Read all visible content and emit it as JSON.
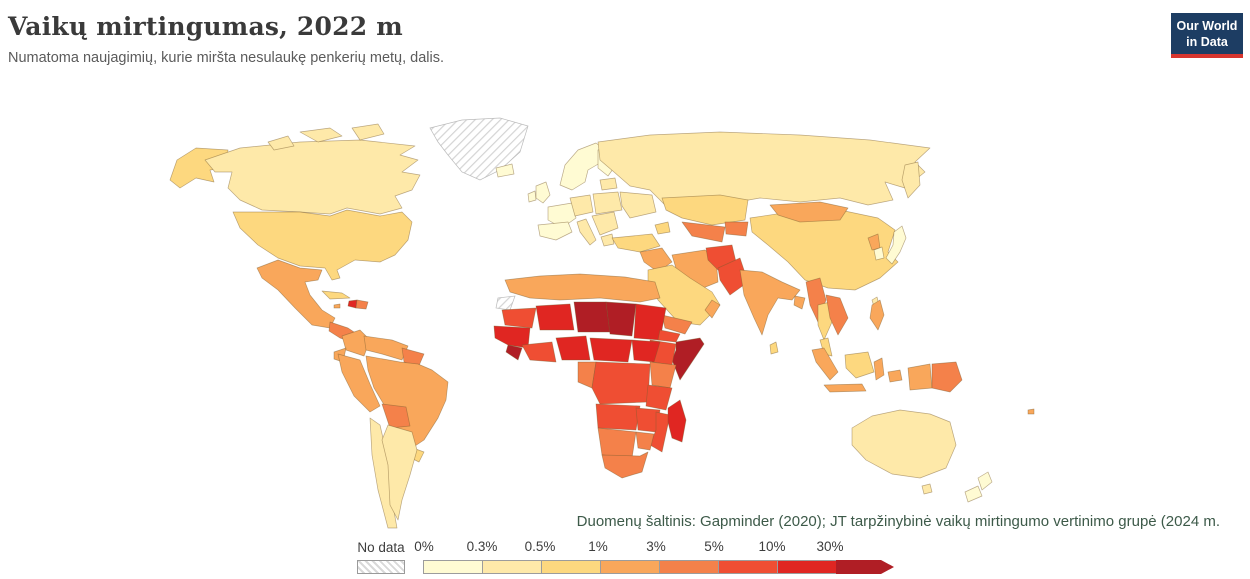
{
  "header": {
    "title": "Vaikų mirtingumas, 2022 m",
    "subtitle": "Numatoma naujagimių, kurie miršta nesulaukę penkerių metų, dalis."
  },
  "logo": {
    "line1": "Our World",
    "line2": "in Data",
    "bg_color": "#1d3d63",
    "accent_color": "#d7352e"
  },
  "source": {
    "text": "Duomenų šaltinis: Gapminder (2020); JT tarpžinybinė vaikų mirtingumo vertinimo grupė (2024 m."
  },
  "legend": {
    "no_data_label": "No data",
    "tick_labels": [
      "0%",
      "0.3%",
      "0.5%",
      "1%",
      "3%",
      "5%",
      "10%",
      "30%"
    ],
    "colors": [
      "#FFFBD3",
      "#FEE9A9",
      "#FDD87F",
      "#F9A75B",
      "#F4814A",
      "#EF4E33",
      "#E02622",
      "#B01E25"
    ]
  },
  "chart_data": {
    "type": "choropleth",
    "title": "Vaikų mirtingumas, 2022 m",
    "subtitle": "Numatoma naujagimių, kurie miršta nesulaukę penkerių metų, dalis.",
    "unit": "%",
    "year": "2022",
    "bins": [
      "0-0.3%",
      "0.3-0.5%",
      "0.5-1%",
      "1-3%",
      "3-5%",
      "5-10%",
      "10-30%",
      ">30%"
    ],
    "bin_colors": [
      "#FFFBD3",
      "#FEE9A9",
      "#FDD87F",
      "#F9A75B",
      "#F4814A",
      "#EF4E33",
      "#E02622",
      "#B01E25"
    ],
    "legend_position": "bottom",
    "no_data": [
      "Greenland",
      "Western Sahara",
      "French Guiana"
    ],
    "regions": [
      {
        "name": "Canada",
        "value": "0.3-0.5%"
      },
      {
        "name": "United States",
        "value": "0.5-1%"
      },
      {
        "name": "Mexico",
        "value": "1-3%"
      },
      {
        "name": "Central America",
        "value": "3-5%"
      },
      {
        "name": "Cuba",
        "value": "0.5-1%"
      },
      {
        "name": "Haiti",
        "value": "10-30%"
      },
      {
        "name": "Dominican Republic",
        "value": "3-5%"
      },
      {
        "name": "Colombia",
        "value": "1-3%"
      },
      {
        "name": "Venezuela",
        "value": "1-3%"
      },
      {
        "name": "Guyana and Suriname",
        "value": "3-5%"
      },
      {
        "name": "Ecuador",
        "value": "1-3%"
      },
      {
        "name": "Peru",
        "value": "1-3%"
      },
      {
        "name": "Brazil",
        "value": "1-3%"
      },
      {
        "name": "Bolivia",
        "value": "3-5%"
      },
      {
        "name": "Paraguay",
        "value": "1-3%"
      },
      {
        "name": "Uruguay",
        "value": "0.5-1%"
      },
      {
        "name": "Chile",
        "value": "0.3-0.5%"
      },
      {
        "name": "Argentina",
        "value": "0.3-0.5%"
      },
      {
        "name": "Iceland",
        "value": "0-0.3%"
      },
      {
        "name": "Norway and Sweden",
        "value": "0-0.3%"
      },
      {
        "name": "Finland",
        "value": "0-0.3%"
      },
      {
        "name": "United Kingdom",
        "value": "0-0.3%"
      },
      {
        "name": "Ireland",
        "value": "0-0.3%"
      },
      {
        "name": "France",
        "value": "0-0.3%"
      },
      {
        "name": "Spain and Portugal",
        "value": "0-0.3%"
      },
      {
        "name": "Germany and Central Europe",
        "value": "0.3-0.5%"
      },
      {
        "name": "Italy",
        "value": "0.3-0.5%"
      },
      {
        "name": "Poland",
        "value": "0.3-0.5%"
      },
      {
        "name": "Balkans",
        "value": "0.3-0.5%"
      },
      {
        "name": "Ukraine",
        "value": "0.3-0.5%"
      },
      {
        "name": "Russia",
        "value": "0.3-0.5%"
      },
      {
        "name": "Turkey",
        "value": "0.5-1%"
      },
      {
        "name": "Kazakhstan",
        "value": "0.5-1%"
      },
      {
        "name": "Turkmenistan and Uzbekistan",
        "value": "3-5%"
      },
      {
        "name": "Kyrgyzstan and Tajikistan",
        "value": "3-5%"
      },
      {
        "name": "Mongolia",
        "value": "1-3%"
      },
      {
        "name": "China",
        "value": "0.5-1%"
      },
      {
        "name": "Japan",
        "value": "0-0.3%"
      },
      {
        "name": "South Korea",
        "value": "0-0.3%"
      },
      {
        "name": "North Korea",
        "value": "1-3%"
      },
      {
        "name": "Iran",
        "value": "1-3%"
      },
      {
        "name": "Iraq and Syria",
        "value": "1-3%"
      },
      {
        "name": "Saudi Arabia",
        "value": "0.5-1%"
      },
      {
        "name": "Yemen",
        "value": "3-5%"
      },
      {
        "name": "Oman",
        "value": "1-3%"
      },
      {
        "name": "Afghanistan",
        "value": "5-10%"
      },
      {
        "name": "Pakistan",
        "value": "5-10%"
      },
      {
        "name": "India",
        "value": "1-3%"
      },
      {
        "name": "Bangladesh",
        "value": "1-3%"
      },
      {
        "name": "Sri Lanka",
        "value": "0.5-1%"
      },
      {
        "name": "Myanmar",
        "value": "3-5%"
      },
      {
        "name": "Thailand",
        "value": "0.5-1%"
      },
      {
        "name": "Laos and Cambodia",
        "value": "3-5%"
      },
      {
        "name": "Vietnam",
        "value": "1-3%"
      },
      {
        "name": "Malaysia",
        "value": "0.5-1%"
      },
      {
        "name": "Philippines",
        "value": "1-3%"
      },
      {
        "name": "Indonesia",
        "value": "1-3%"
      },
      {
        "name": "Papua New Guinea",
        "value": "3-5%"
      },
      {
        "name": "Australia",
        "value": "0.3-0.5%"
      },
      {
        "name": "New Zealand",
        "value": "0.3-0.5%"
      },
      {
        "name": "Morocco",
        "value": "1-3%"
      },
      {
        "name": "Algeria, Libya and Egypt",
        "value": "1-3%"
      },
      {
        "name": "Mauritania",
        "value": "5-10%"
      },
      {
        "name": "Mali",
        "value": "10-30%"
      },
      {
        "name": "Niger",
        "value": ">30%"
      },
      {
        "name": "Chad",
        "value": ">30%"
      },
      {
        "name": "Sudan",
        "value": "10-30%"
      },
      {
        "name": "Senegal and Guinea coast",
        "value": "10-30%"
      },
      {
        "name": "Sierra Leone and Liberia",
        "value": ">30%"
      },
      {
        "name": "Ivory Coast and Ghana",
        "value": "5-10%"
      },
      {
        "name": "Nigeria",
        "value": "10-30%"
      },
      {
        "name": "Cameroon and Central African Republic",
        "value": "10-30%"
      },
      {
        "name": "South Sudan",
        "value": "10-30%"
      },
      {
        "name": "Ethiopia",
        "value": "5-10%"
      },
      {
        "name": "Eritrea and Djibouti",
        "value": "5-10%"
      },
      {
        "name": "Somalia",
        "value": ">30%"
      },
      {
        "name": "Uganda and Kenya",
        "value": "3-5%"
      },
      {
        "name": "Gabon and Congo",
        "value": "3-5%"
      },
      {
        "name": "DR Congo",
        "value": "5-10%"
      },
      {
        "name": "Tanzania",
        "value": "5-10%"
      },
      {
        "name": "Angola",
        "value": "5-10%"
      },
      {
        "name": "Zambia",
        "value": "5-10%"
      },
      {
        "name": "Malawi and Mozambique",
        "value": "5-10%"
      },
      {
        "name": "Zimbabwe",
        "value": "3-5%"
      },
      {
        "name": "Namibia and Botswana",
        "value": "3-5%"
      },
      {
        "name": "South Africa",
        "value": "3-5%"
      },
      {
        "name": "Madagascar",
        "value": "10-30%"
      }
    ]
  }
}
